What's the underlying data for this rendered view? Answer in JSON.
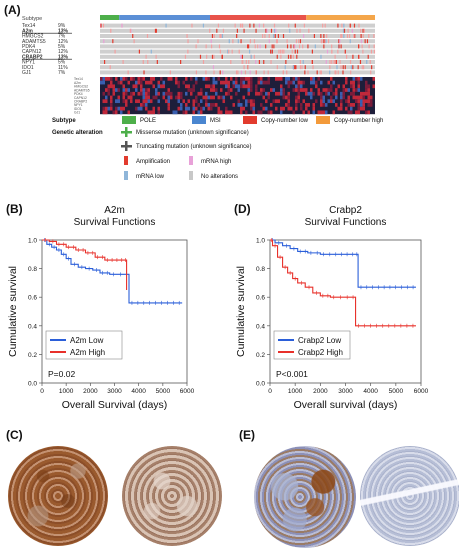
{
  "panels": {
    "A": "(A)",
    "B": "(B)",
    "C": "(C)",
    "D": "(D)",
    "E": "(E)"
  },
  "oncoprint": {
    "subtype_label": "Subtype",
    "genes": [
      {
        "name": "Tex14",
        "pct": "9%",
        "bold": false
      },
      {
        "name": "A2m",
        "pct": "13%",
        "bold": true
      },
      {
        "name": "HMGCS2",
        "pct": "7%",
        "bold": false
      },
      {
        "name": "ADAMTS5",
        "pct": "12%",
        "bold": false
      },
      {
        "name": "PDK4",
        "pct": "5%",
        "bold": false
      },
      {
        "name": "CAPN12",
        "pct": "12%",
        "bold": false
      },
      {
        "name": "CRABP2",
        "pct": "13%",
        "bold": true
      },
      {
        "name": "NPY1",
        "pct": "5%",
        "bold": false
      },
      {
        "name": "IDO1",
        "pct": "11%",
        "bold": false
      },
      {
        "name": "GJ1",
        "pct": "7%",
        "bold": false
      }
    ],
    "heatmap_genes": [
      "Tex14",
      "A2m",
      "HMGCS2",
      "ADAMTS5",
      "PDK4",
      "CAPN12",
      "CRABP2",
      "NPY1",
      "IDO1",
      "GJ1"
    ],
    "subtype_segments": [
      {
        "name": "POLE",
        "color": "#4daf4a",
        "fraction": 0.07
      },
      {
        "name": "MSI",
        "color": "#5b8fd6",
        "fraction": 0.33
      },
      {
        "name": "Copy-number low",
        "color": "#e8534a",
        "fraction": 0.35
      },
      {
        "name": "Copy-number high",
        "color": "#f4a64a",
        "fraction": 0.25
      }
    ],
    "legend": {
      "subtype_title": "Subtype",
      "subtypes": [
        {
          "label": "POLE",
          "color": "#4daf4a"
        },
        {
          "label": "MSI",
          "color": "#4a86d0"
        },
        {
          "label": "Copy-number low",
          "color": "#e23b2e"
        },
        {
          "label": "Copy-number high",
          "color": "#f39a3a"
        }
      ],
      "genetic_title": "Genetic alteration",
      "alterations": [
        {
          "label": "Missense mutation (unknown significance)",
          "color": "#4daf4a",
          "kind": "cross"
        },
        {
          "label": "Truncating mutation (unknown significance)",
          "color": "#555555",
          "kind": "cross"
        },
        {
          "label": "Amplification",
          "color": "#e23b2e",
          "kind": "bar"
        },
        {
          "label": "mRNA high",
          "color": "#e8a1d8",
          "kind": "bar"
        },
        {
          "label": "mRNA low",
          "color": "#8fb6d9",
          "kind": "bar"
        },
        {
          "label": "No alterations",
          "color": "#c8c8c8",
          "kind": "bar"
        }
      ]
    }
  },
  "km_B": {
    "title_line1": "A2m",
    "title_line2": "Survival Functions",
    "ylabel": "Cumulative survival",
    "xlabel": "Overall Survival (days)",
    "pvalue": "P=0.02",
    "xticks": [
      "0",
      "1000",
      "2000",
      "3000",
      "4000",
      "5000",
      "6000"
    ],
    "yticks": [
      "0.0",
      "0.2",
      "0.4",
      "0.6",
      "0.8",
      "1.0"
    ],
    "series": [
      {
        "name": "A2m Low",
        "color": "#2b5fd9"
      },
      {
        "name": "A2m High",
        "color": "#e8302a"
      }
    ]
  },
  "km_D": {
    "title_line1": "Crabp2",
    "title_line2": "Survival Functions",
    "ylabel": "Cumulative survival",
    "xlabel": "Overall survival (days)",
    "pvalue": "P<0.001",
    "xticks": [
      "0",
      "1000",
      "2000",
      "3000",
      "4000",
      "5000",
      "6000"
    ],
    "yticks": [
      "0.0",
      "0.2",
      "0.4",
      "0.6",
      "0.8",
      "1.0"
    ],
    "series": [
      {
        "name": "Crabp2 Low",
        "color": "#2b5fd9"
      },
      {
        "name": "Crabp2 High",
        "color": "#e8302a"
      }
    ]
  },
  "chart_data": [
    {
      "type": "line",
      "title": "A2m Survival Functions",
      "xlabel": "Overall Survival (days)",
      "ylabel": "Cumulative survival",
      "xlim": [
        0,
        6000
      ],
      "ylim": [
        0,
        1.0
      ],
      "annotation": "P=0.02",
      "legend": "bottom-left",
      "series": [
        {
          "name": "A2m Low",
          "x": [
            0,
            200,
            400,
            600,
            800,
            1000,
            1200,
            1500,
            1800,
            2100,
            2400,
            2800,
            3400,
            3600,
            5800
          ],
          "y": [
            1.0,
            0.97,
            0.95,
            0.93,
            0.9,
            0.87,
            0.83,
            0.81,
            0.8,
            0.79,
            0.77,
            0.76,
            0.76,
            0.56,
            0.56
          ]
        },
        {
          "name": "A2m High",
          "x": [
            0,
            300,
            600,
            1000,
            1400,
            1800,
            2200,
            2600,
            3000,
            3400,
            3500
          ],
          "y": [
            1.0,
            0.99,
            0.97,
            0.95,
            0.93,
            0.91,
            0.88,
            0.86,
            0.86,
            0.86,
            0.65
          ]
        }
      ]
    },
    {
      "type": "line",
      "title": "Crabp2 Survival Functions",
      "xlabel": "Overall survival (days)",
      "ylabel": "Cumulative survival",
      "xlim": [
        0,
        6000
      ],
      "ylim": [
        0,
        1.0
      ],
      "annotation": "P<0.001",
      "legend": "bottom-left",
      "series": [
        {
          "name": "Crabp2 Low",
          "x": [
            0,
            200,
            500,
            800,
            1100,
            1500,
            2000,
            2500,
            3400,
            3500,
            5800
          ],
          "y": [
            1.0,
            0.98,
            0.96,
            0.94,
            0.92,
            0.91,
            0.9,
            0.9,
            0.9,
            0.67,
            0.67
          ]
        },
        {
          "name": "Crabp2 High",
          "x": [
            0,
            100,
            300,
            500,
            700,
            900,
            1100,
            1400,
            1700,
            2000,
            2400,
            3200,
            3400,
            5800
          ],
          "y": [
            1.0,
            0.96,
            0.88,
            0.81,
            0.77,
            0.73,
            0.7,
            0.67,
            0.63,
            0.61,
            0.6,
            0.6,
            0.4,
            0.4
          ]
        }
      ]
    }
  ]
}
